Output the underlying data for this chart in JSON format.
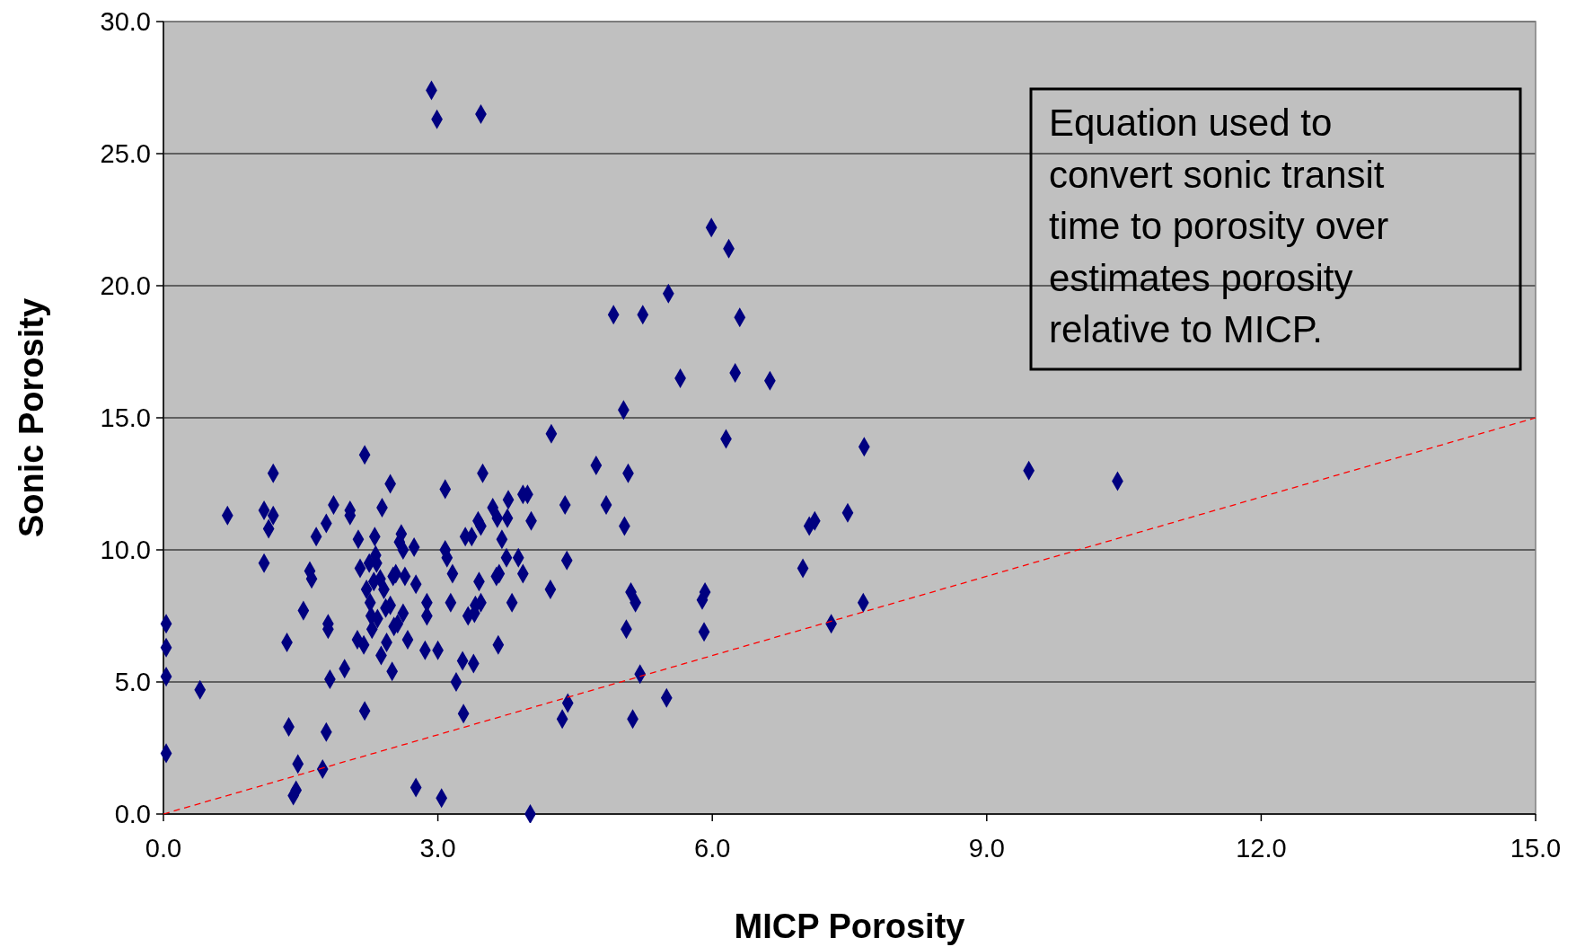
{
  "chart_data": {
    "type": "scatter",
    "xlabel": "MICP Porosity",
    "ylabel": "Sonic Porosity",
    "xlim": [
      0,
      15
    ],
    "xticks": [
      {
        "value": 0,
        "label": "0.0"
      },
      {
        "value": 3,
        "label": "3.0"
      },
      {
        "value": 6,
        "label": "6.0"
      },
      {
        "value": 9,
        "label": "9.0"
      },
      {
        "value": 12,
        "label": "12.0"
      },
      {
        "value": 15,
        "label": "15.0"
      }
    ],
    "ylim": [
      0,
      30
    ],
    "yticks": [
      {
        "value": 0,
        "label": "0.0"
      },
      {
        "value": 5,
        "label": "5.0"
      },
      {
        "value": 10,
        "label": "10.0"
      },
      {
        "value": 15,
        "label": "15.0"
      },
      {
        "value": 20,
        "label": "20.0"
      },
      {
        "value": 25,
        "label": "25.0"
      },
      {
        "value": 30,
        "label": "30.0"
      }
    ],
    "grid": "y",
    "annotations": [
      "Equation used to convert sonic transit time to porosity over estimates porosity relative to MICP."
    ],
    "series": [
      {
        "color": "#000080",
        "marker": "diamond",
        "x": [
          0.03,
          0.03,
          0.03,
          0.03,
          0.4,
          0.7,
          1.1,
          1.2,
          1.15,
          1.1,
          1.2,
          1.35,
          1.37,
          1.47,
          1.45,
          1.42,
          1.53,
          1.6,
          1.62,
          1.67,
          1.74,
          1.78,
          1.78,
          1.8,
          1.8,
          1.82,
          1.86,
          1.98,
          2.04,
          2.04,
          2.12,
          2.13,
          2.15,
          2.19,
          2.2,
          2.2,
          2.22,
          2.25,
          2.26,
          2.27,
          2.28,
          2.3,
          2.31,
          2.32,
          2.33,
          2.34,
          2.37,
          2.38,
          2.39,
          2.41,
          2.43,
          2.44,
          2.48,
          2.48,
          2.5,
          2.51,
          2.52,
          2.54,
          2.56,
          2.58,
          2.6,
          2.62,
          2.62,
          2.64,
          2.67,
          2.74,
          2.76,
          2.76,
          2.88,
          2.88,
          2.86,
          2.93,
          2.99,
          3.0,
          3.04,
          3.08,
          3.08,
          3.1,
          3.14,
          3.16,
          3.2,
          3.27,
          3.28,
          3.3,
          3.33,
          3.37,
          3.39,
          3.4,
          3.41,
          3.44,
          3.45,
          3.47,
          3.47,
          3.49,
          3.47,
          3.6,
          3.64,
          3.65,
          3.66,
          3.67,
          3.7,
          3.75,
          3.76,
          3.77,
          3.81,
          3.88,
          3.93,
          3.93,
          3.98,
          4.01,
          4.02,
          4.23,
          4.24,
          4.36,
          4.39,
          4.41,
          4.42,
          4.73,
          4.84,
          4.92,
          5.03,
          5.04,
          5.06,
          5.08,
          5.11,
          5.13,
          5.16,
          5.21,
          5.24,
          5.52,
          5.5,
          5.65,
          5.89,
          5.92,
          5.91,
          5.99,
          6.18,
          6.15,
          6.25,
          6.3,
          6.63,
          6.99,
          7.06,
          7.12,
          7.3,
          7.48,
          7.66,
          7.65,
          9.46,
          10.43
        ],
        "values": [
          7.2,
          6.3,
          5.2,
          2.3,
          4.7,
          11.3,
          11.5,
          11.3,
          10.8,
          9.5,
          12.9,
          6.5,
          3.3,
          1.9,
          0.9,
          0.7,
          7.7,
          9.2,
          8.9,
          10.5,
          1.7,
          3.1,
          11.0,
          7.2,
          7.0,
          5.1,
          11.7,
          5.5,
          11.5,
          11.3,
          6.6,
          10.4,
          9.3,
          6.4,
          13.6,
          3.9,
          8.5,
          9.5,
          8.0,
          7.5,
          7.0,
          8.8,
          10.5,
          9.8,
          9.5,
          7.4,
          8.9,
          6.0,
          11.6,
          8.5,
          7.8,
          6.5,
          12.5,
          7.9,
          5.4,
          9.0,
          7.1,
          9.1,
          7.2,
          10.3,
          10.6,
          10.0,
          7.6,
          9.0,
          6.6,
          10.1,
          8.7,
          1.0,
          8.0,
          7.5,
          6.2,
          27.4,
          26.3,
          6.2,
          0.6,
          12.3,
          10.0,
          9.7,
          8.0,
          9.1,
          5.0,
          5.8,
          3.8,
          10.5,
          7.5,
          10.5,
          5.7,
          7.6,
          7.9,
          11.1,
          8.8,
          26.5,
          8.0,
          12.9,
          10.9,
          11.6,
          9.0,
          11.2,
          6.4,
          9.1,
          10.4,
          9.7,
          11.2,
          11.9,
          8.0,
          9.7,
          12.1,
          9.1,
          12.1,
          0.0,
          11.1,
          8.5,
          14.4,
          3.6,
          11.7,
          9.6,
          4.2,
          13.2,
          11.7,
          18.9,
          15.3,
          10.9,
          7.0,
          12.9,
          8.4,
          3.6,
          8.0,
          5.3,
          18.9,
          19.7,
          4.4,
          16.5,
          8.1,
          8.4,
          6.9,
          22.2,
          21.4,
          14.2,
          16.7,
          18.8,
          16.4,
          9.3,
          10.9,
          11.1,
          7.2,
          11.4,
          13.9,
          8.0,
          13.0,
          12.6
        ]
      },
      {
        "type": "line",
        "color": "#ff0000",
        "line_style": "dashed",
        "marker": "none",
        "x": [
          0,
          15
        ],
        "values": [
          0,
          15
        ]
      }
    ]
  }
}
